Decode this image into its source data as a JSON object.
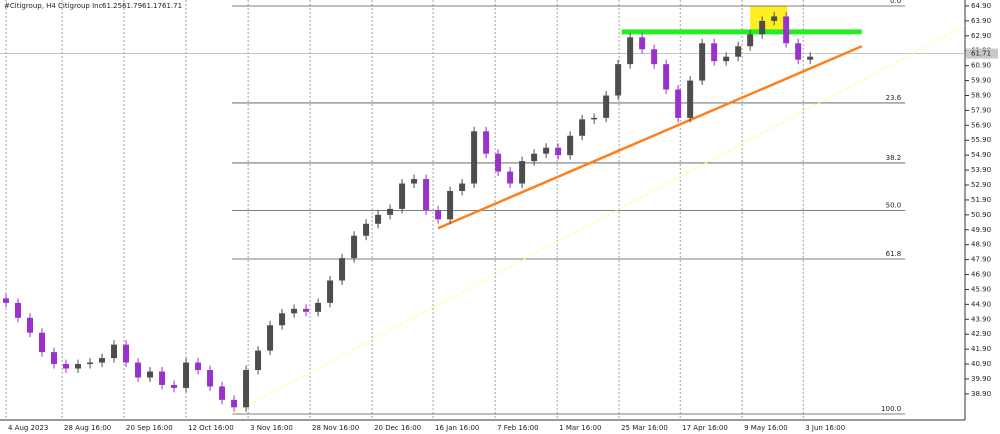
{
  "chart_data": {
    "type": "candlestick",
    "symbol": "#Citigroup, H4",
    "instrument": "Citigroup Inc",
    "header_ohlc": [
      61.25,
      61.79,
      61.17,
      61.71
    ],
    "current_price": 61.71,
    "up_color": "#4d4d4d",
    "down_color": "#9932cc",
    "xlim": [
      -0.5,
      79.9
    ],
    "ylim": [
      37.15,
      65.3
    ],
    "xticks": [
      {
        "value": 0,
        "label": "4 Aug 2023"
      },
      {
        "value": 4.67,
        "label": "28 Aug 16:00"
      },
      {
        "value": 9.83,
        "label": "20 Sep 16:00"
      },
      {
        "value": 15,
        "label": "12 Oct 16:00"
      },
      {
        "value": 20.17,
        "label": "3 Nov 16:00"
      },
      {
        "value": 25.33,
        "label": "28 Nov 16:00"
      },
      {
        "value": 30.5,
        "label": "20 Dec 16:00"
      },
      {
        "value": 35.58,
        "label": "16 Jan 16:00"
      },
      {
        "value": 40.75,
        "label": "7 Feb 16:00"
      },
      {
        "value": 45.92,
        "label": "1 Mar 16:00"
      },
      {
        "value": 51.08,
        "label": "25 Mar 16:00"
      },
      {
        "value": 56.17,
        "label": "17 Apr 16:00"
      },
      {
        "value": 61.33,
        "label": "9 May 16:00"
      },
      {
        "value": 66.42,
        "label": "3 Jun 16:00"
      }
    ],
    "yticks": [
      {
        "value": 64.9,
        "label": "64.90"
      },
      {
        "value": 63.9,
        "label": "63.90"
      },
      {
        "value": 62.9,
        "label": "62.90"
      },
      {
        "value": 61.9,
        "label": "61.90"
      },
      {
        "value": 60.9,
        "label": "60.90"
      },
      {
        "value": 59.9,
        "label": "59.90"
      },
      {
        "value": 58.9,
        "label": "58.90"
      },
      {
        "value": 57.9,
        "label": "57.90"
      },
      {
        "value": 56.9,
        "label": "56.90"
      },
      {
        "value": 55.9,
        "label": "55.90"
      },
      {
        "value": 54.9,
        "label": "54.90"
      },
      {
        "value": 53.9,
        "label": "53.90"
      },
      {
        "value": 52.9,
        "label": "52.90"
      },
      {
        "value": 51.9,
        "label": "51.90"
      },
      {
        "value": 50.9,
        "label": "50.90"
      },
      {
        "value": 49.9,
        "label": "49.90"
      },
      {
        "value": 48.9,
        "label": "48.90"
      },
      {
        "value": 47.9,
        "label": "47.90"
      },
      {
        "value": 46.9,
        "label": "46.90"
      },
      {
        "value": 45.9,
        "label": "45.90"
      },
      {
        "value": 44.9,
        "label": "44.90"
      },
      {
        "value": 43.9,
        "label": "43.90"
      },
      {
        "value": 42.9,
        "label": "42.90"
      },
      {
        "value": 41.9,
        "label": "41.90"
      },
      {
        "value": 40.9,
        "label": "40.90"
      },
      {
        "value": 39.9,
        "label": "39.90"
      },
      {
        "value": 38.9,
        "label": "38.90"
      }
    ],
    "open": [
      45.3,
      45.0,
      44.0,
      43.0,
      41.7,
      40.9,
      40.6,
      40.9,
      41.0,
      41.3,
      42.2,
      41.0,
      40.0,
      40.4,
      39.5,
      39.3,
      41.0,
      40.5,
      39.4,
      38.5,
      38.0,
      40.5,
      41.8,
      43.5,
      44.3,
      44.6,
      44.4,
      45.0,
      46.5,
      48.0,
      49.5,
      50.3,
      50.9,
      51.3,
      53.0,
      53.3,
      51.2,
      50.6,
      52.5,
      53.0,
      56.5,
      55.0,
      53.8,
      53.0,
      54.5,
      55.0,
      55.4,
      54.9,
      56.2,
      57.3,
      57.4,
      58.9,
      61.0,
      62.8,
      62.0,
      61.0,
      59.3,
      57.4,
      59.9,
      62.4,
      61.2,
      61.5,
      62.2,
      63.0,
      63.9,
      64.2,
      62.4,
      61.3
    ],
    "high": [
      45.6,
      45.3,
      44.3,
      43.3,
      42.0,
      41.2,
      41.2,
      41.3,
      41.6,
      42.5,
      42.5,
      41.3,
      40.7,
      40.7,
      39.8,
      41.3,
      41.3,
      40.8,
      39.7,
      38.8,
      40.8,
      42.1,
      43.8,
      44.6,
      44.9,
      44.9,
      45.3,
      46.8,
      48.3,
      49.8,
      50.6,
      51.2,
      51.6,
      53.3,
      53.6,
      53.6,
      51.5,
      52.8,
      53.3,
      56.8,
      56.8,
      55.3,
      54.1,
      54.8,
      55.3,
      55.7,
      55.7,
      56.5,
      57.6,
      57.7,
      59.2,
      61.3,
      63.1,
      63.1,
      62.3,
      61.3,
      59.6,
      60.2,
      62.7,
      62.7,
      61.8,
      62.5,
      63.3,
      64.2,
      64.5,
      64.5,
      62.7,
      61.8
    ],
    "low": [
      44.7,
      43.7,
      42.7,
      41.4,
      40.6,
      40.3,
      40.3,
      40.6,
      40.7,
      41.0,
      40.7,
      39.7,
      39.7,
      39.2,
      39.0,
      39.0,
      40.2,
      39.1,
      38.2,
      37.7,
      37.7,
      40.2,
      41.5,
      43.2,
      44.0,
      44.1,
      44.1,
      44.7,
      46.2,
      47.7,
      49.2,
      50.0,
      50.6,
      51.0,
      52.7,
      50.9,
      50.3,
      50.3,
      52.2,
      52.7,
      54.7,
      53.5,
      52.7,
      52.7,
      54.2,
      54.7,
      54.6,
      54.6,
      55.9,
      57.0,
      57.1,
      58.6,
      60.7,
      61.7,
      60.7,
      59.0,
      57.1,
      57.1,
      59.6,
      60.9,
      60.9,
      61.2,
      61.9,
      62.7,
      63.6,
      62.1,
      61.0,
      61.0
    ],
    "close": [
      45.0,
      44.0,
      43.0,
      41.7,
      40.9,
      40.6,
      40.9,
      41.0,
      41.3,
      42.2,
      41.0,
      40.0,
      40.4,
      39.5,
      39.3,
      41.0,
      40.5,
      39.4,
      38.5,
      38.0,
      40.5,
      41.8,
      43.5,
      44.3,
      44.6,
      44.4,
      45.0,
      46.5,
      48.0,
      49.5,
      50.3,
      50.9,
      51.3,
      53.0,
      53.3,
      51.2,
      50.6,
      52.5,
      53.0,
      56.5,
      55.0,
      53.8,
      53.0,
      54.5,
      55.0,
      55.4,
      54.9,
      56.2,
      57.3,
      57.4,
      58.9,
      61.0,
      62.8,
      62.0,
      61.0,
      59.3,
      57.4,
      59.9,
      62.4,
      61.2,
      61.5,
      62.2,
      63.0,
      63.9,
      64.2,
      62.4,
      61.3,
      61.5
    ],
    "fibonacci": {
      "x_start": 18.83,
      "x_end": 74.92,
      "levels": [
        {
          "label": "0.0",
          "price": 64.9
        },
        {
          "label": "23.6",
          "price": 58.4
        },
        {
          "label": "38.2",
          "price": 54.38
        },
        {
          "label": "50.0",
          "price": 51.2
        },
        {
          "label": "61.8",
          "price": 47.94
        },
        {
          "label": "100.0",
          "price": 37.55
        }
      ]
    },
    "trendlines": [
      {
        "color": "#ffff99",
        "points": [
          [
            18.8,
            37.55
          ],
          [
            79.9,
            63.57
          ]
        ]
      },
      {
        "color": "#ff7f1a",
        "points": [
          [
            36.0,
            50.0
          ],
          [
            71.3,
            62.2
          ]
        ]
      },
      {
        "color": "#22ee22",
        "points": [
          [
            51.3,
            63.16
          ],
          [
            71.3,
            63.16
          ]
        ]
      }
    ],
    "highlight": {
      "color": "#ffee22",
      "x": [
        62.0,
        65.1
      ],
      "y": [
        63.02,
        64.9
      ]
    }
  }
}
